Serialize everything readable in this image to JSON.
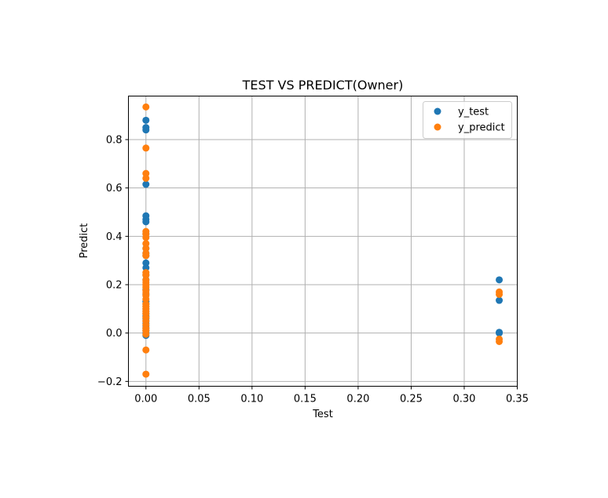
{
  "chart_data": {
    "type": "scatter",
    "title": "TEST VS PREDICT(Owner)",
    "xlabel": "Test",
    "ylabel": "Predict",
    "xlim": [
      -0.0165,
      0.35
    ],
    "ylim": [
      -0.22,
      0.98
    ],
    "x_ticks": [
      0.0,
      0.05,
      0.1,
      0.15,
      0.2,
      0.25,
      0.3,
      0.35
    ],
    "x_tick_labels": [
      "0.00",
      "0.05",
      "0.10",
      "0.15",
      "0.20",
      "0.25",
      "0.30",
      "0.35"
    ],
    "y_ticks": [
      -0.2,
      0.0,
      0.2,
      0.4,
      0.6,
      0.8
    ],
    "y_tick_labels": [
      "−0.2",
      "0.0",
      "0.2",
      "0.4",
      "0.6",
      "0.8"
    ],
    "grid": true,
    "legend_position": "top-right",
    "series": [
      {
        "name": "y_test",
        "color": "#1f77b4",
        "x": [
          0,
          0,
          0,
          0,
          0,
          0,
          0,
          0,
          0,
          0,
          0,
          0,
          0,
          0,
          0,
          0,
          0,
          0,
          0,
          0,
          0,
          0,
          0,
          0,
          0,
          0,
          0,
          0,
          0,
          0,
          0,
          0,
          0.333,
          0.333,
          0.333,
          0.333
        ],
        "y": [
          0.88,
          0.85,
          0.84,
          0.615,
          0.485,
          0.47,
          0.46,
          0.41,
          0.35,
          0.33,
          0.32,
          0.29,
          0.27,
          0.24,
          0.22,
          0.18,
          0.16,
          0.13,
          0.12,
          0.1,
          0.08,
          0.06,
          0.05,
          0.04,
          0.03,
          0.02,
          0.01,
          0.0,
          -0.01,
          0.07,
          0.09,
          0.11,
          0.22,
          0.135,
          0.003,
          0.0
        ]
      },
      {
        "name": "y_predict",
        "color": "#ff7f0e",
        "x": [
          0,
          0,
          0,
          0,
          0,
          0,
          0,
          0,
          0,
          0,
          0,
          0,
          0,
          0,
          0,
          0,
          0,
          0,
          0,
          0,
          0,
          0,
          0,
          0,
          0,
          0,
          0,
          0,
          0,
          0,
          0,
          0,
          0,
          0,
          0.333,
          0.333,
          0.333,
          0.333
        ],
        "y": [
          0.935,
          0.765,
          0.66,
          0.64,
          0.42,
          0.41,
          0.395,
          0.37,
          0.35,
          0.33,
          0.32,
          0.25,
          0.24,
          0.22,
          0.21,
          0.2,
          0.19,
          0.175,
          0.165,
          0.155,
          0.11,
          0.09,
          0.08,
          0.065,
          0.05,
          0.035,
          0.02,
          0.01,
          -0.005,
          -0.07,
          -0.17,
          0.14,
          0.12,
          0.1,
          0.17,
          0.16,
          -0.025,
          -0.035
        ]
      }
    ]
  }
}
